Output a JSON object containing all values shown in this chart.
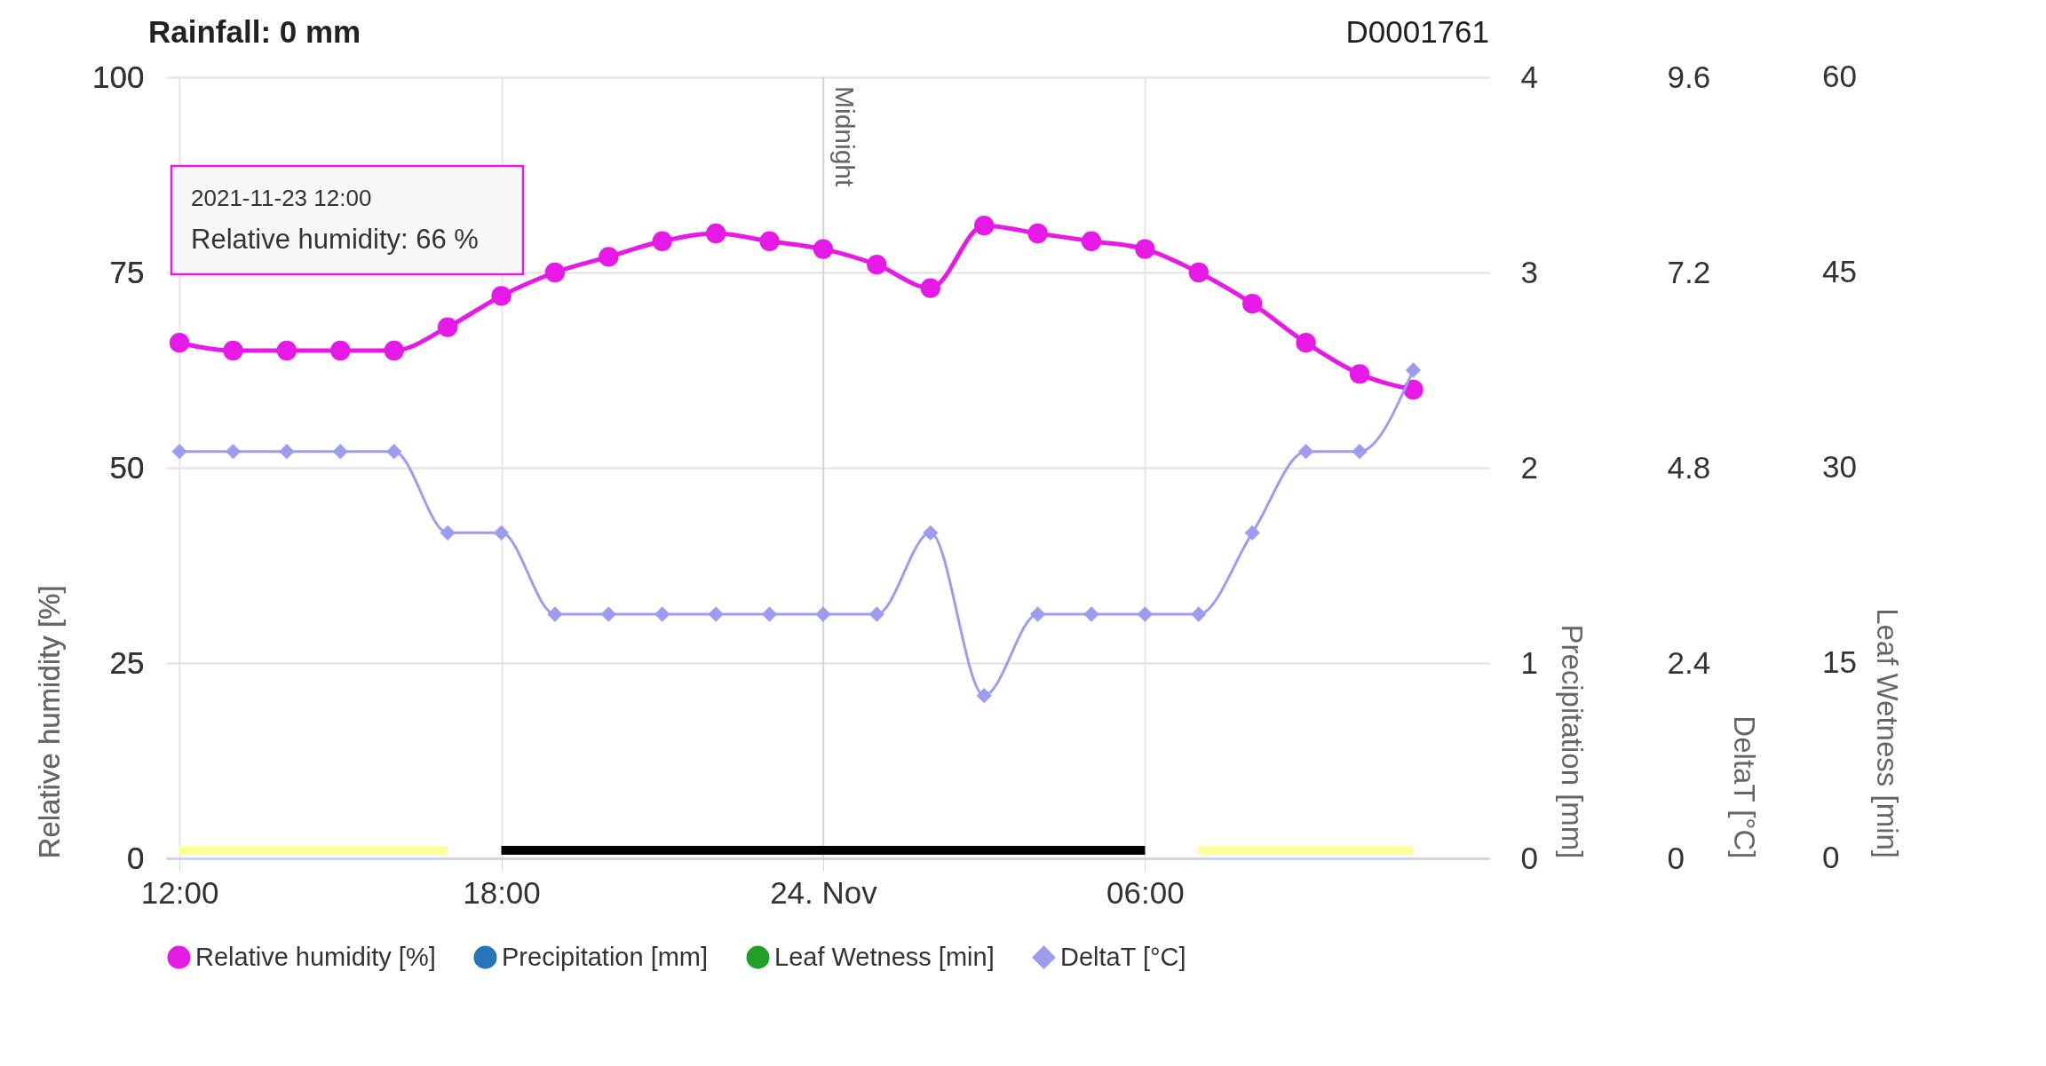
{
  "chart_data": {
    "type": "line",
    "title": "Rainfall: 0 mm",
    "subtitle": "D0001761",
    "ylabel": "Relative humidity  [%]",
    "y2label": "Precipitation [mm]",
    "y3label": "DeltaT [°C]",
    "x": [
      "2021-11-23T12:00",
      "2021-11-23T13:00",
      "2021-11-23T14:00",
      "2021-11-23T15:00",
      "2021-11-23T16:00",
      "2021-11-23T17:00",
      "2021-11-23T18:00",
      "2021-11-23T19:00",
      "2021-11-23T20:00",
      "2021-11-23T21:00",
      "2021-11-23T22:00",
      "2021-11-23T23:00",
      "2021-11-24T00:00",
      "2021-11-24T01:00",
      "2021-11-24T02:00",
      "2021-11-24T03:00",
      "2021-11-24T04:00",
      "2021-11-24T05:00",
      "2021-11-24T06:00",
      "2021-11-24T07:00",
      "2021-11-24T08:00",
      "2021-11-24T09:00",
      "2021-11-24T10:00",
      "2021-11-24T11:00"
    ],
    "series": [
      {
        "name": "Relative humidity [%]",
        "color": "#e619e6",
        "values": [
          66,
          65,
          65,
          65,
          65,
          68,
          72,
          75,
          77,
          79,
          80,
          79,
          78,
          76,
          73,
          81,
          80,
          79,
          78,
          75,
          71,
          66,
          62,
          60
        ]
      },
      {
        "name": "Precipitation [mm]",
        "type": "bar",
        "axis": "y2",
        "color": "#2874b8",
        "values": [
          null,
          null,
          null,
          null,
          null,
          null,
          null,
          null,
          null,
          null,
          null,
          null,
          null,
          null,
          null,
          null,
          null,
          null,
          null,
          null,
          null,
          null,
          null,
          null
        ]
      },
      {
        "name": "Leaf Wetness [min]",
        "type": "bar",
        "color": "#22a02a",
        "values": [
          null,
          null,
          null,
          null,
          null,
          null,
          null,
          null,
          null,
          null,
          null,
          null,
          null,
          null,
          null,
          null,
          null,
          null,
          null,
          null,
          null,
          null,
          null,
          null
        ]
      },
      {
        "name": "DeltaT [°C]",
        "axis": "y3",
        "color": "#9c9cf0",
        "marker": "diamond",
        "values": [
          5,
          5,
          5,
          5,
          5,
          4,
          4,
          3,
          3,
          3,
          3,
          3,
          3,
          3,
          4,
          2,
          3,
          3,
          3,
          3,
          4,
          5,
          5,
          6
        ]
      }
    ],
    "xlim": [
      "2021-11-23T11:50",
      "2021-11-24T12:20"
    ],
    "xticks": [
      {
        "value": "2021-11-23T12:00",
        "label": "12:00"
      },
      {
        "value": "2021-11-23T18:00",
        "label": "18:00"
      },
      {
        "value": "2021-11-24T00:00",
        "label": "24. Nov"
      },
      {
        "value": "2021-11-24T06:00",
        "label": "06:00"
      }
    ],
    "ylim": [
      0,
      100
    ],
    "yticks": [
      0,
      25,
      50,
      75,
      100
    ],
    "y2lim": [
      0,
      4
    ],
    "y2ticks": [
      0,
      1,
      2,
      3,
      4
    ],
    "y3lim": [
      0,
      9.6
    ],
    "y3ticks": [
      0,
      2.4,
      4.8,
      7.2,
      9.6
    ],
    "ref_lines": [
      {
        "axis": "x",
        "value": "2021-11-24T00:00",
        "label": "Midnight",
        "color": "#d8d8d8"
      }
    ],
    "annotations": [
      "2021-11-23 12:00",
      "Relative humidity:  66 %",
      "Leaf Wetness [min]",
      "0",
      "15",
      "30",
      "45",
      "60"
    ],
    "grid": true,
    "legend": "bottom",
    "marker": "circle"
  }
}
